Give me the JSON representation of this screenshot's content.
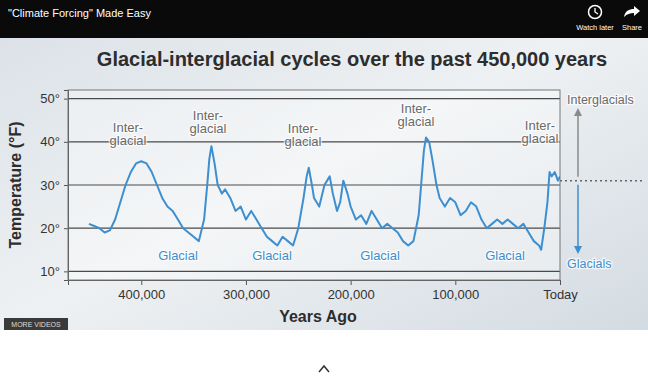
{
  "page": {
    "video_title": "\"Climate Forcing\" Made Easy",
    "buttons": [
      "Watch later",
      "Share"
    ],
    "more_videos": "MORE VIDEOS"
  },
  "chart_data": {
    "type": "line",
    "title": "Glacial-interglacial cycles over the past 450,000 years",
    "x_label": "Years Ago",
    "y_label": "Temperature (°F)",
    "x": [
      450000,
      445000,
      440000,
      435000,
      430000,
      425000,
      420000,
      415000,
      410000,
      405000,
      400000,
      395000,
      390000,
      385000,
      380000,
      375000,
      370000,
      365000,
      360000,
      355000,
      350000,
      345000,
      340000,
      337000,
      335000,
      333000,
      330000,
      327000,
      323000,
      320000,
      315000,
      310000,
      305000,
      300000,
      295000,
      290000,
      285000,
      280000,
      275000,
      270000,
      265000,
      260000,
      255000,
      250000,
      245000,
      242000,
      240000,
      237000,
      235000,
      230000,
      225000,
      220000,
      217000,
      213000,
      210000,
      207000,
      203000,
      200000,
      195000,
      190000,
      185000,
      180000,
      175000,
      170000,
      165000,
      160000,
      155000,
      150000,
      145000,
      140000,
      135000,
      132000,
      130000,
      128000,
      125000,
      122000,
      118000,
      115000,
      110000,
      105000,
      100000,
      95000,
      90000,
      85000,
      80000,
      75000,
      70000,
      65000,
      60000,
      55000,
      50000,
      45000,
      40000,
      35000,
      30000,
      25000,
      20000,
      18000,
      15000,
      12000,
      10000,
      8000,
      5000,
      2000,
      0
    ],
    "values": [
      21,
      20.5,
      20,
      19,
      19.5,
      22,
      26,
      30,
      33,
      35,
      35.5,
      35,
      33,
      30,
      27,
      25,
      24,
      22,
      20,
      19,
      18,
      17,
      22,
      30,
      36,
      39,
      35,
      30,
      28,
      29,
      27,
      24,
      25,
      22,
      24,
      22,
      20,
      18,
      17,
      16,
      18,
      17,
      16,
      20,
      27,
      32,
      34,
      30,
      27,
      25,
      30,
      32,
      28,
      24,
      26,
      31,
      28,
      25,
      22,
      23,
      21,
      24,
      22,
      20,
      21,
      20,
      19,
      17,
      16,
      17,
      23,
      32,
      38,
      41,
      40,
      36,
      30,
      27,
      25,
      27,
      26,
      23,
      24,
      26,
      25,
      22,
      20,
      21,
      22,
      21,
      22,
      21,
      20,
      21,
      19,
      17,
      16,
      15,
      20,
      26,
      33,
      32,
      33,
      31,
      32
    ],
    "color": "#3d8fcf",
    "xlim": [
      470000,
      0
    ],
    "xticks": [
      {
        "value": 400000,
        "label": "400,000"
      },
      {
        "value": 300000,
        "label": "300,000"
      },
      {
        "value": 200000,
        "label": "200,000"
      },
      {
        "value": 100000,
        "label": "100,000"
      },
      {
        "value": 0,
        "label": "Today"
      }
    ],
    "ylim": [
      8,
      52
    ],
    "yticks": [
      {
        "value": 10,
        "label": "10°"
      },
      {
        "value": 20,
        "label": "20°"
      },
      {
        "value": 30,
        "label": "30°"
      },
      {
        "value": 40,
        "label": "40°"
      },
      {
        "value": 50,
        "label": "50°"
      }
    ],
    "grid": true,
    "reference_line": 31,
    "annotations": [
      "Inter-\nglacial",
      "Inter-\nglacial",
      "Inter-\nglacial",
      "Inter-\nglacial",
      "Inter-\nglacial",
      "Glacial",
      "Glacial",
      "Glacial",
      "Glacial",
      "Interglacials",
      "Glacials"
    ]
  }
}
